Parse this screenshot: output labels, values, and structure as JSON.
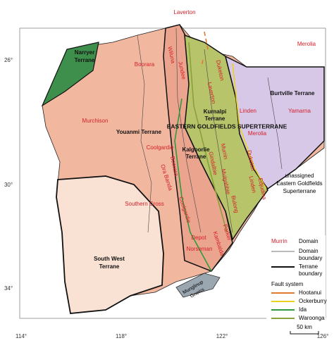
{
  "place_labels": [
    "Laverton",
    "Merolia",
    "Boorara",
    "Wiluna",
    "Jundee",
    "Duketon",
    "Laverton",
    "Linden",
    "Yamarna",
    "Murchison",
    "Merolia",
    "Coolgardie",
    "Murrin",
    "Gindalbie",
    "Duketon",
    "Boorara",
    "Ora Banda",
    "Mulgabbie",
    "Bulong",
    "Edjudina",
    "Linden",
    "Southern Cross",
    "Coolgardie",
    "Depot",
    "Parker",
    "Kambalda",
    "Norseman"
  ],
  "terrane_labels": {
    "narryer": [
      "Narryer",
      "Terrane"
    ],
    "youanmi": "Youanmi Terrane",
    "burtville": "Burtville Terrane",
    "kurnalpi": [
      "Kurnalpi",
      "Terrane"
    ],
    "superterrane": "EASTERN GOLDFIELDS SUPERTERRANE",
    "kalgoorlie": [
      "Kalgoorlie",
      "Terrane"
    ],
    "south_west": [
      "South West",
      "Terrane"
    ],
    "munglinup": [
      "Munglinup",
      "Gneiss"
    ],
    "unassigned": [
      "unassigned",
      "Eastern Goldfields",
      "Superterrane"
    ]
  },
  "grid_labels": {
    "lat": [
      "26°",
      "30°",
      "34°"
    ],
    "lon": [
      "114°",
      "118°",
      "122°",
      "126°"
    ]
  },
  "legend": {
    "domain_example": "Murrin",
    "domain": "Domain",
    "domain_boundary": [
      "Domain",
      "boundary"
    ],
    "terrane_boundary": [
      "Terrane",
      "boundary"
    ],
    "fault_system": "Fault system",
    "faults": [
      "Hootanui",
      "Ockerburry",
      "Ida",
      "Waroonga"
    ]
  },
  "scale_bar": "50 km"
}
